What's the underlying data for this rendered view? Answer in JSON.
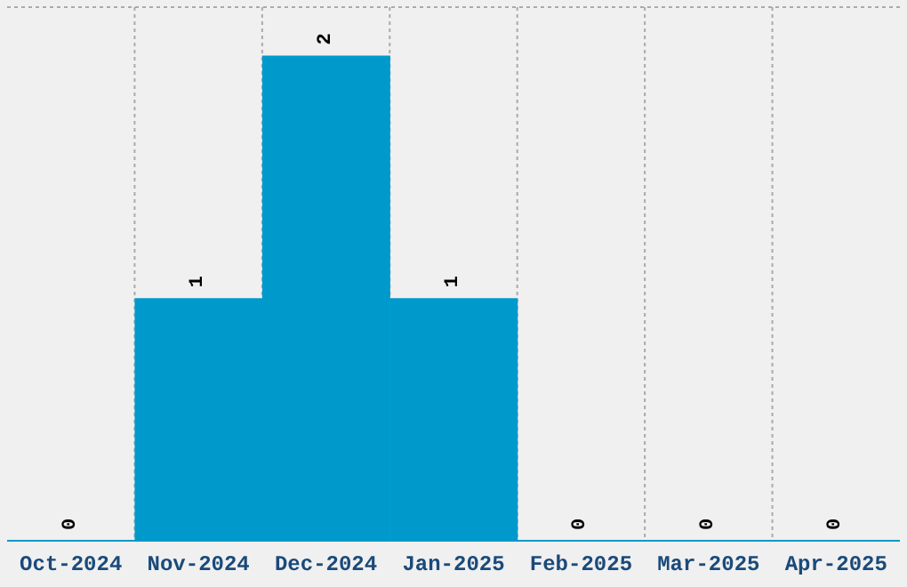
{
  "chart_data": {
    "type": "bar",
    "categories": [
      "Oct-2024",
      "Nov-2024",
      "Dec-2024",
      "Jan-2025",
      "Feb-2025",
      "Mar-2025",
      "Apr-2025"
    ],
    "values": [
      0,
      1,
      2,
      1,
      0,
      0,
      0
    ],
    "color": "#0099cc",
    "data_labels": true,
    "grid": true,
    "tick_labels": "x",
    "ylim": [
      0,
      2.2
    ]
  }
}
